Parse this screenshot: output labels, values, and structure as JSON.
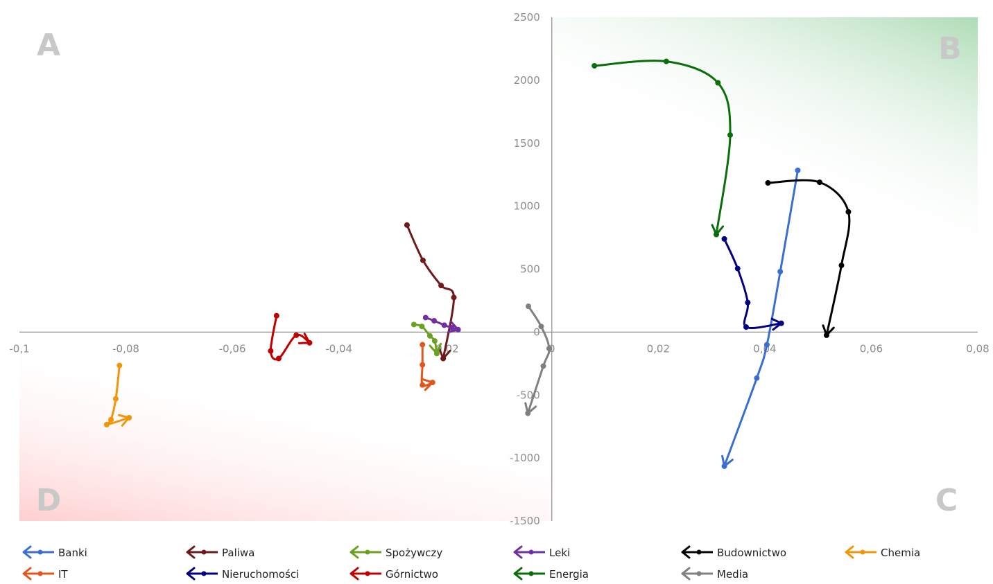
{
  "chart_data": {
    "type": "line",
    "xlim": [
      -0.1,
      0.08
    ],
    "ylim": [
      -1500,
      2500
    ],
    "x_ticks": [
      {
        "value": -0.1,
        "label": "-0,1"
      },
      {
        "value": -0.08,
        "label": "-0,08"
      },
      {
        "value": -0.06,
        "label": "-0,06"
      },
      {
        "value": -0.04,
        "label": "-0,04"
      },
      {
        "value": -0.02,
        "label": "-0,02"
      },
      {
        "value": 0,
        "label": "0"
      },
      {
        "value": 0.02,
        "label": "0,02"
      },
      {
        "value": 0.04,
        "label": "0,04"
      },
      {
        "value": 0.06,
        "label": "0,06"
      },
      {
        "value": 0.08,
        "label": "0,08"
      }
    ],
    "y_ticks": [
      {
        "value": 2500,
        "label": "2500"
      },
      {
        "value": 2000,
        "label": "2000"
      },
      {
        "value": 1500,
        "label": "1500"
      },
      {
        "value": 1000,
        "label": "1000"
      },
      {
        "value": 500,
        "label": "500"
      },
      {
        "value": 0,
        "label": "0"
      },
      {
        "value": -500,
        "label": "-500"
      },
      {
        "value": -1000,
        "label": "-1000"
      },
      {
        "value": -1500,
        "label": "-1500"
      }
    ],
    "quadrant_labels": {
      "A": "A",
      "B": "B",
      "C": "C",
      "D": "D"
    },
    "grid": false,
    "legend_position": "bottom",
    "series": [
      {
        "name": "Banki",
        "color": "#3a6fd0",
        "points": [
          [
            0.0462,
            1285
          ],
          [
            0.0429,
            480
          ],
          [
            0.0404,
            -100
          ],
          [
            0.0385,
            -365
          ],
          [
            0.0324,
            -1065
          ]
        ]
      },
      {
        "name": "Paliwa",
        "color": "#6e1a1a",
        "points": [
          [
            -0.0272,
            850
          ],
          [
            -0.0242,
            570
          ],
          [
            -0.0208,
            370
          ],
          [
            -0.0184,
            275
          ],
          [
            -0.0204,
            -210
          ]
        ]
      },
      {
        "name": "Spożywczy",
        "color": "#6aa121",
        "points": [
          [
            -0.0259,
            60
          ],
          [
            -0.0244,
            45
          ],
          [
            -0.0229,
            -30
          ],
          [
            -0.022,
            -70
          ],
          [
            -0.0216,
            -170
          ]
        ]
      },
      {
        "name": "Leki",
        "color": "#7030a0",
        "points": [
          [
            -0.0237,
            115
          ],
          [
            -0.0221,
            90
          ],
          [
            -0.0202,
            55
          ],
          [
            -0.0188,
            35
          ],
          [
            -0.0176,
            20
          ]
        ]
      },
      {
        "name": "Budownictwo",
        "color": "#000000",
        "points": [
          [
            0.0406,
            1185
          ],
          [
            0.0503,
            1190
          ],
          [
            0.0557,
            955
          ],
          [
            0.0544,
            530
          ],
          [
            0.0516,
            -25
          ]
        ]
      },
      {
        "name": "Chemia",
        "color": "#f0960a",
        "points": [
          [
            -0.0812,
            -265
          ],
          [
            -0.0819,
            -530
          ],
          [
            -0.0828,
            -695
          ],
          [
            -0.0836,
            -735
          ],
          [
            -0.0794,
            -680
          ]
        ]
      },
      {
        "name": "IT",
        "color": "#e2561e",
        "points": [
          [
            -0.0243,
            -100
          ],
          [
            -0.0243,
            -260
          ],
          [
            -0.0243,
            -420
          ],
          [
            -0.0224,
            -400
          ]
        ]
      },
      {
        "name": "Nieruchomości",
        "color": "#000080",
        "points": [
          [
            0.0324,
            740
          ],
          [
            0.0349,
            505
          ],
          [
            0.0368,
            235
          ],
          [
            0.0365,
            40
          ],
          [
            0.0431,
            70
          ]
        ]
      },
      {
        "name": "Górnictwo",
        "color": "#c00000",
        "points": [
          [
            -0.0517,
            130
          ],
          [
            -0.0528,
            -150
          ],
          [
            -0.0513,
            -210
          ],
          [
            -0.048,
            -25
          ],
          [
            -0.0455,
            -85
          ]
        ]
      },
      {
        "name": "Energia",
        "color": "#0a6e0a",
        "points": [
          [
            0.008,
            2115
          ],
          [
            0.0215,
            2150
          ],
          [
            0.0312,
            1980
          ],
          [
            0.0335,
            1565
          ],
          [
            0.0309,
            775
          ]
        ]
      },
      {
        "name": "Media",
        "color": "#808080",
        "points": [
          [
            -0.0044,
            205
          ],
          [
            -0.002,
            45
          ],
          [
            -0.0005,
            -130
          ],
          [
            -0.0016,
            -270
          ],
          [
            -0.0045,
            -645
          ]
        ]
      }
    ]
  }
}
